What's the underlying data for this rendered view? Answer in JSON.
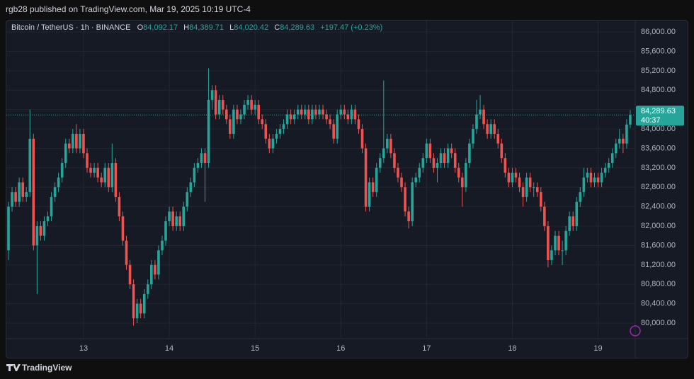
{
  "publisher": "rgb28 published on TradingView.com, Mar 19, 2025 10:19 UTC-4",
  "brand": "TradingView",
  "legend": {
    "symbol": "Bitcoin / TetherUS · 1h · BINANCE",
    "items": [
      {
        "key": "O",
        "value": "84,092.17"
      },
      {
        "key": "H",
        "value": "84,389.71"
      },
      {
        "key": "L",
        "value": "84,020.42"
      },
      {
        "key": "C",
        "value": "84,289.63"
      }
    ],
    "change": "+197.47 (+0.23%)"
  },
  "last_price_label": "84,289.63",
  "countdown": "40:37",
  "chart_data": {
    "type": "candlestick",
    "up_color": "#26a69a",
    "down_color": "#ef5350",
    "grid": true,
    "ylim": [
      79680,
      86220
    ],
    "yticks": [
      {
        "value": 80000,
        "label": "80,000.00"
      },
      {
        "value": 80400,
        "label": "80,400.00"
      },
      {
        "value": 80800,
        "label": "80,800.00"
      },
      {
        "value": 81200,
        "label": "81,200.00"
      },
      {
        "value": 81600,
        "label": "81,600.00"
      },
      {
        "value": 82000,
        "label": "82,000.00"
      },
      {
        "value": 82400,
        "label": "82,400.00"
      },
      {
        "value": 82800,
        "label": "82,800.00"
      },
      {
        "value": 83200,
        "label": "83,200.00"
      },
      {
        "value": 83600,
        "label": "83,600.00"
      },
      {
        "value": 84000,
        "label": "84,000.00"
      },
      {
        "value": 84400,
        "label": "84,400.00"
      },
      {
        "value": 84800,
        "label": "84,800.00"
      },
      {
        "value": 85200,
        "label": "85,200.00"
      },
      {
        "value": 85600,
        "label": "85,600.00"
      },
      {
        "value": 86000,
        "label": "86,000.00"
      }
    ],
    "categories": [
      null,
      null,
      null,
      null,
      null,
      null,
      null,
      null,
      null,
      null,
      null,
      null,
      null,
      null,
      null,
      null,
      null,
      null,
      null,
      null,
      null,
      "13",
      null,
      null,
      null,
      null,
      null,
      null,
      null,
      null,
      null,
      null,
      null,
      null,
      null,
      null,
      null,
      null,
      null,
      null,
      null,
      null,
      null,
      null,
      null,
      "14",
      null,
      null,
      null,
      null,
      null,
      null,
      null,
      null,
      null,
      null,
      null,
      null,
      null,
      null,
      null,
      null,
      null,
      null,
      null,
      null,
      null,
      null,
      null,
      "15",
      null,
      null,
      null,
      null,
      null,
      null,
      null,
      null,
      null,
      null,
      null,
      null,
      null,
      null,
      null,
      null,
      null,
      null,
      null,
      null,
      null,
      null,
      null,
      "16",
      null,
      null,
      null,
      null,
      null,
      null,
      null,
      null,
      null,
      null,
      null,
      null,
      null,
      null,
      null,
      null,
      null,
      null,
      null,
      null,
      null,
      null,
      null,
      "17",
      null,
      null,
      null,
      null,
      null,
      null,
      null,
      null,
      null,
      null,
      null,
      null,
      null,
      null,
      null,
      null,
      null,
      null,
      null,
      null,
      null,
      null,
      null,
      "18",
      null,
      null,
      null,
      null,
      null,
      null,
      null,
      null,
      null,
      null,
      null,
      null,
      null,
      null,
      null,
      null,
      null,
      null,
      null,
      null,
      null,
      null,
      null,
      "19",
      null,
      null,
      null,
      null,
      null,
      null,
      null,
      null,
      null
    ],
    "open": [
      81500,
      82400,
      82700,
      82500,
      82900,
      82600,
      82700,
      83800,
      81600,
      82000,
      81800,
      82100,
      82200,
      82600,
      82800,
      83000,
      83300,
      83700,
      83600,
      83900,
      83600,
      83900,
      83500,
      83200,
      83100,
      83200,
      83000,
      82900,
      83200,
      82800,
      83300,
      82600,
      82200,
      81700,
      81200,
      80800,
      80100,
      80400,
      80200,
      80600,
      80800,
      81200,
      81000,
      81500,
      81700,
      82100,
      82300,
      82000,
      82200,
      82000,
      82400,
      82700,
      82900,
      83200,
      83300,
      83500,
      83300,
      84600,
      84800,
      84300,
      84600,
      84400,
      84200,
      83900,
      84400,
      84200,
      84300,
      84500,
      84600,
      84400,
      84500,
      84200,
      84100,
      83800,
      83600,
      83800,
      83900,
      84000,
      84100,
      84300,
      84200,
      84300,
      84400,
      84300,
      84400,
      84200,
      84400,
      84300,
      84400,
      84300,
      84200,
      84100,
      83800,
      84300,
      84400,
      84300,
      84200,
      84400,
      84200,
      84000,
      83600,
      82400,
      82900,
      82700,
      83200,
      83400,
      83600,
      83800,
      83500,
      83200,
      83000,
      82800,
      82300,
      82100,
      82900,
      83000,
      83200,
      83400,
      83700,
      83400,
      83200,
      83300,
      83500,
      83300,
      83600,
      83500,
      83200,
      83000,
      82800,
      83300,
      83700,
      84000,
      84300,
      84400,
      84100,
      83900,
      84100,
      83900,
      83700,
      83400,
      83100,
      82900,
      83100,
      83000,
      82800,
      82600,
      83000,
      82800,
      82800,
      82700,
      82400,
      82000,
      81300,
      81500,
      81800,
      81500,
      81500,
      81900,
      82200,
      82000,
      82500,
      82700,
      83000,
      83100,
      82900,
      83000,
      82900,
      83100,
      83200,
      83300,
      83500,
      83700,
      83800,
      83700,
      84092.17
    ],
    "high": [
      82500,
      82800,
      82800,
      83000,
      83000,
      82800,
      84400,
      83900,
      82100,
      82100,
      82200,
      82300,
      82700,
      82900,
      83100,
      83400,
      83800,
      83800,
      84000,
      84100,
      84000,
      84000,
      83600,
      83300,
      83300,
      83300,
      83100,
      83300,
      83300,
      83700,
      83400,
      82700,
      82300,
      81800,
      81300,
      80900,
      80500,
      80500,
      80700,
      80900,
      81300,
      81300,
      81600,
      81800,
      82200,
      82400,
      82400,
      82300,
      82300,
      82500,
      82800,
      83000,
      83300,
      83400,
      83600,
      83600,
      85250,
      84900,
      84900,
      84700,
      84700,
      84500,
      84300,
      84500,
      84500,
      84400,
      84600,
      84700,
      84700,
      84600,
      84600,
      84300,
      84200,
      83900,
      83900,
      84000,
      84100,
      84200,
      84400,
      84400,
      84400,
      84500,
      84500,
      84500,
      84500,
      84500,
      84500,
      84500,
      84500,
      84400,
      84300,
      84200,
      84400,
      84500,
      84500,
      84400,
      84500,
      84500,
      84300,
      84100,
      83700,
      83000,
      83000,
      83300,
      83500,
      85000,
      83900,
      83900,
      83600,
      83300,
      83100,
      82900,
      82400,
      83000,
      83100,
      83300,
      83500,
      83800,
      83800,
      83500,
      83400,
      83600,
      83600,
      83700,
      83700,
      83600,
      83300,
      83100,
      83400,
      83800,
      84100,
      84600,
      84700,
      84500,
      84200,
      84200,
      84200,
      84000,
      83800,
      83500,
      83200,
      83200,
      83200,
      83100,
      82900,
      83100,
      83100,
      82900,
      82900,
      82800,
      82500,
      82100,
      81600,
      81900,
      81900,
      81700,
      82000,
      82300,
      82300,
      82600,
      82800,
      83200,
      83200,
      83200,
      83100,
      83100,
      83200,
      83300,
      83400,
      83600,
      83800,
      84000,
      83900,
      84200,
      84389.71
    ],
    "low": [
      81300,
      82300,
      82400,
      82400,
      82500,
      82500,
      82600,
      81500,
      80600,
      81700,
      81700,
      82000,
      82100,
      82500,
      82700,
      82900,
      83200,
      83500,
      83500,
      83500,
      83500,
      83400,
      83100,
      83000,
      83000,
      82900,
      82800,
      82800,
      82700,
      82700,
      82500,
      82100,
      81600,
      81100,
      80700,
      79950,
      80000,
      80100,
      80100,
      80500,
      80700,
      80900,
      80900,
      81400,
      81600,
      82000,
      81900,
      81900,
      81900,
      81900,
      82300,
      82600,
      82800,
      83100,
      83200,
      82500,
      83200,
      84400,
      84200,
      84200,
      84300,
      84100,
      83800,
      83800,
      84100,
      84100,
      84200,
      84400,
      84300,
      84300,
      84100,
      84000,
      83700,
      83500,
      83500,
      83700,
      83800,
      83900,
      84000,
      84100,
      84100,
      84200,
      84200,
      84200,
      84100,
      84100,
      84200,
      84200,
      84200,
      84100,
      84000,
      83700,
      83700,
      84200,
      84200,
      84100,
      84100,
      84100,
      83900,
      83500,
      82300,
      82300,
      82600,
      82600,
      83100,
      83300,
      83500,
      83400,
      83100,
      82900,
      82700,
      82200,
      81950,
      82000,
      82800,
      82900,
      83100,
      83300,
      83300,
      83100,
      82900,
      83200,
      83200,
      83200,
      83400,
      83100,
      82900,
      82400,
      82700,
      83200,
      83600,
      83900,
      84200,
      84000,
      83800,
      83800,
      83800,
      83600,
      83300,
      83000,
      82800,
      82800,
      82900,
      82700,
      82400,
      82500,
      82700,
      82600,
      82600,
      82300,
      81900,
      81150,
      81200,
      81400,
      81400,
      81200,
      81400,
      81800,
      81900,
      81900,
      82400,
      82600,
      82900,
      82800,
      82800,
      82800,
      82800,
      83000,
      83100,
      83200,
      83400,
      83600,
      83500,
      83600,
      84020.42
    ],
    "close": [
      82400,
      82700,
      82500,
      82900,
      82600,
      82700,
      83800,
      81600,
      82000,
      81800,
      82100,
      82200,
      82600,
      82800,
      83000,
      83300,
      83700,
      83600,
      83900,
      83600,
      83900,
      83500,
      83200,
      83100,
      83200,
      83000,
      82900,
      83200,
      82800,
      83300,
      82600,
      82200,
      81700,
      81200,
      80800,
      80100,
      80400,
      80200,
      80600,
      80800,
      81200,
      81000,
      81500,
      81700,
      82100,
      82300,
      82000,
      82200,
      82000,
      82400,
      82700,
      82900,
      83200,
      83300,
      83500,
      83300,
      84600,
      84800,
      84300,
      84600,
      84400,
      84200,
      83900,
      84400,
      84200,
      84300,
      84500,
      84600,
      84400,
      84500,
      84200,
      84100,
      83800,
      83600,
      83800,
      83900,
      84000,
      84100,
      84300,
      84200,
      84300,
      84400,
      84300,
      84400,
      84200,
      84400,
      84300,
      84400,
      84300,
      84200,
      84100,
      83800,
      84300,
      84400,
      84300,
      84200,
      84400,
      84200,
      84000,
      83600,
      82400,
      82900,
      82700,
      83200,
      83400,
      83600,
      83800,
      83500,
      83200,
      83000,
      82800,
      82300,
      82100,
      82900,
      83000,
      83200,
      83400,
      83700,
      83400,
      83200,
      83300,
      83500,
      83300,
      83600,
      83500,
      83200,
      83000,
      82800,
      83300,
      83700,
      84000,
      84300,
      84400,
      84100,
      83900,
      84100,
      83900,
      83700,
      83400,
      83100,
      82900,
      83100,
      83000,
      82800,
      82600,
      83000,
      82800,
      82800,
      82700,
      82400,
      82000,
      81300,
      81500,
      81800,
      81500,
      81500,
      81900,
      82200,
      82000,
      82500,
      82700,
      83000,
      83100,
      82900,
      83000,
      82900,
      83100,
      83200,
      83300,
      83500,
      83700,
      83800,
      83700,
      84092.17,
      84289.63
    ]
  }
}
